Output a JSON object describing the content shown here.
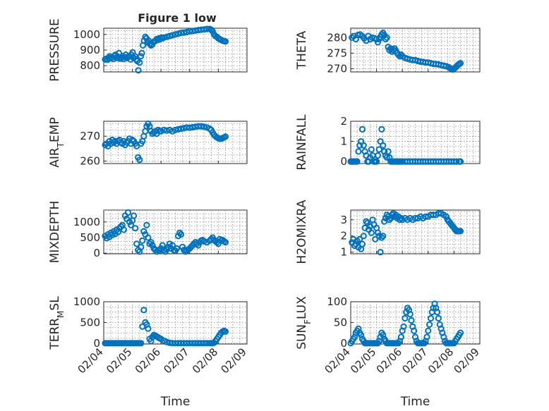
{
  "figure": {
    "title": "Figure 1 low"
  },
  "style": {
    "marker_color": "#0072BD",
    "marker": "open-circle",
    "grid": true
  },
  "chart_data": [
    {
      "type": "scatter",
      "title": "Figure 1 low",
      "xlabel": "",
      "ylabel": "PRESSURE",
      "xlim": [
        "02/04",
        "02/09"
      ],
      "xticks": [],
      "ylim": [
        760,
        1040
      ],
      "yticks": [
        800,
        900,
        1000
      ],
      "x": [
        4.05,
        4.09,
        4.13,
        4.17,
        4.21,
        4.25,
        4.29,
        4.33,
        4.37,
        4.41,
        4.45,
        4.49,
        4.53,
        4.57,
        4.61,
        4.65,
        4.69,
        4.73,
        4.77,
        4.81,
        4.85,
        4.89,
        4.93,
        4.97,
        5.01,
        5.05,
        5.09,
        5.13,
        5.17,
        5.21,
        5.25,
        5.29,
        5.33,
        5.37,
        5.41,
        5.45,
        5.49,
        5.53,
        5.57,
        5.61,
        5.65,
        5.69,
        5.73,
        5.77,
        5.81,
        5.85,
        5.89,
        5.93,
        5.97,
        6.01,
        6.05,
        6.1,
        6.2,
        6.3,
        6.4,
        6.5,
        6.6,
        6.7,
        6.8,
        6.9,
        7.0,
        7.1,
        7.2,
        7.3,
        7.4,
        7.5,
        7.6,
        7.7,
        7.75,
        7.8,
        7.85,
        7.9,
        7.95,
        8.0,
        8.05,
        8.1,
        8.15,
        8.2,
        8.25
      ],
      "y": [
        840,
        845,
        838,
        850,
        860,
        848,
        855,
        842,
        862,
        870,
        850,
        858,
        880,
        845,
        850,
        860,
        842,
        855,
        870,
        850,
        855,
        860,
        840,
        870,
        885,
        850,
        860,
        840,
        830,
        770,
        820,
        860,
        880,
        930,
        960,
        985,
        975,
        950,
        960,
        940,
        930,
        935,
        950,
        955,
        960,
        970,
        965,
        975,
        970,
        980,
        975,
        980,
        985,
        990,
        995,
        1000,
        1005,
        1010,
        1012,
        1015,
        1020,
        1022,
        1025,
        1028,
        1030,
        1032,
        1035,
        1035,
        1030,
        1020,
        1000,
        990,
        985,
        975,
        970,
        965,
        960,
        958,
        955
      ]
    },
    {
      "type": "scatter",
      "title": "",
      "xlabel": "",
      "ylabel": "THETA",
      "xlim": [
        "02/04",
        "02/09"
      ],
      "xticks": [],
      "ylim": [
        269,
        283
      ],
      "yticks": [
        270,
        275,
        280
      ],
      "x": [
        4.05,
        4.12,
        4.2,
        4.28,
        4.36,
        4.44,
        4.52,
        4.6,
        4.68,
        4.76,
        4.84,
        4.92,
        5.0,
        5.05,
        5.1,
        5.15,
        5.2,
        5.25,
        5.3,
        5.35,
        5.4,
        5.45,
        5.5,
        5.55,
        5.6,
        5.65,
        5.7,
        5.75,
        5.8,
        5.85,
        5.9,
        5.95,
        6.0,
        6.1,
        6.2,
        6.3,
        6.4,
        6.5,
        6.6,
        6.7,
        6.8,
        6.9,
        7.0,
        7.1,
        7.2,
        7.3,
        7.4,
        7.5,
        7.6,
        7.7,
        7.8,
        7.85,
        7.9,
        7.95,
        8.0,
        8.05,
        8.1,
        8.15,
        8.2,
        8.25
      ],
      "y": [
        280,
        280.5,
        279.5,
        280.8,
        281,
        280.5,
        279.8,
        279,
        280.5,
        279.5,
        280,
        279.8,
        279.5,
        278.5,
        279.5,
        280.2,
        281,
        281.5,
        280.8,
        279.5,
        280,
        277,
        276,
        276.5,
        275.5,
        276,
        276.5,
        275.8,
        275,
        274.5,
        274,
        274.5,
        274,
        273.5,
        273.2,
        273,
        272.8,
        272.8,
        272.5,
        272.3,
        272.2,
        272,
        272,
        271.8,
        271.6,
        271.5,
        271.4,
        271.2,
        271,
        270.8,
        270.5,
        270.2,
        270,
        269.8,
        270,
        270.3,
        270.8,
        271.2,
        271.5,
        271.8
      ]
    },
    {
      "type": "scatter",
      "title": "",
      "xlabel": "",
      "ylabel": "AIR_TEMP",
      "xlim": [
        "02/04",
        "02/09"
      ],
      "xticks": [],
      "ylim": [
        259,
        276
      ],
      "yticks": [
        260,
        270
      ],
      "x": [
        4.05,
        4.1,
        4.15,
        4.2,
        4.25,
        4.3,
        4.35,
        4.4,
        4.45,
        4.5,
        4.55,
        4.6,
        4.65,
        4.7,
        4.75,
        4.8,
        4.85,
        4.9,
        4.95,
        5.0,
        5.05,
        5.1,
        5.15,
        5.2,
        5.25,
        5.3,
        5.35,
        5.4,
        5.45,
        5.5,
        5.55,
        5.6,
        5.65,
        5.7,
        5.75,
        5.8,
        5.85,
        5.9,
        5.95,
        6.0,
        6.1,
        6.2,
        6.3,
        6.4,
        6.5,
        6.6,
        6.7,
        6.8,
        6.9,
        7.0,
        7.1,
        7.2,
        7.3,
        7.4,
        7.5,
        7.6,
        7.7,
        7.75,
        7.8,
        7.85,
        7.9,
        7.95,
        8.0,
        8.05,
        8.1,
        8.15,
        8.2,
        8.25
      ],
      "y": [
        266.5,
        267,
        266,
        268,
        267,
        268.5,
        267.5,
        268,
        267,
        268,
        268.5,
        267.5,
        267,
        268,
        266.5,
        267.5,
        268,
        269,
        267,
        268.5,
        268,
        267,
        266,
        261.5,
        260.5,
        267,
        268,
        270,
        272,
        274,
        275,
        274,
        272,
        271,
        271.5,
        272,
        271,
        272.5,
        272,
        272,
        272.5,
        272.3,
        272.5,
        272,
        272.5,
        272.8,
        273,
        273.2,
        273.5,
        273.4,
        273.6,
        273.8,
        274,
        274,
        273.8,
        273.5,
        273,
        272.5,
        271.5,
        270.5,
        270,
        269.5,
        269.2,
        269,
        269,
        269.2,
        269.5,
        269.8
      ]
    },
    {
      "type": "scatter",
      "title": "",
      "xlabel": "",
      "ylabel": "RAINFALL",
      "xlim": [
        "02/04",
        "02/09"
      ],
      "xticks": [],
      "ylim": [
        -0.1,
        2
      ],
      "yticks": [
        0,
        1,
        2
      ],
      "x": [
        4.0,
        4.05,
        4.1,
        4.15,
        4.2,
        4.25,
        4.3,
        4.35,
        4.4,
        4.45,
        4.5,
        4.55,
        4.6,
        4.65,
        4.7,
        4.75,
        4.8,
        4.85,
        4.9,
        4.95,
        5.0,
        5.05,
        5.1,
        5.15,
        5.2,
        5.25,
        5.3,
        5.35,
        5.4,
        5.45,
        5.5,
        5.55,
        5.6,
        5.65,
        5.7,
        5.75,
        5.8,
        5.85,
        5.9,
        5.95,
        6.0,
        6.1,
        6.2,
        6.3,
        6.4,
        6.5,
        6.6,
        6.7,
        6.8,
        6.9,
        7.0,
        7.1,
        7.2,
        7.3,
        7.4,
        7.5,
        7.6,
        7.7,
        7.8,
        7.9,
        8.0,
        8.1,
        8.2,
        8.25
      ],
      "y": [
        0,
        0,
        0,
        0,
        0,
        0,
        0.5,
        0.8,
        1.0,
        1.6,
        0.8,
        0.5,
        0.3,
        0,
        0,
        0.2,
        0.6,
        0.3,
        0,
        0,
        0,
        0.3,
        0.6,
        1.0,
        1.6,
        0.8,
        0.5,
        0.3,
        0.2,
        0.5,
        0.2,
        0,
        0,
        0,
        0,
        0,
        0,
        0,
        0,
        0,
        0,
        0,
        0,
        0,
        0,
        0,
        0,
        0,
        0,
        0,
        0,
        0,
        0,
        0,
        0,
        0,
        0,
        0,
        0,
        0,
        0,
        0,
        0,
        0
      ]
    },
    {
      "type": "scatter",
      "title": "",
      "xlabel": "",
      "ylabel": "MIXDEPTH",
      "xlim": [
        "02/04",
        "02/09"
      ],
      "xticks": [],
      "ylim": [
        -20,
        1380
      ],
      "yticks": [
        0,
        500,
        1000
      ],
      "x": [
        4.05,
        4.1,
        4.15,
        4.2,
        4.25,
        4.3,
        4.35,
        4.4,
        4.45,
        4.5,
        4.55,
        4.6,
        4.65,
        4.7,
        4.75,
        4.8,
        4.85,
        4.9,
        4.95,
        5.0,
        5.05,
        5.1,
        5.15,
        5.2,
        5.25,
        5.3,
        5.35,
        5.4,
        5.45,
        5.5,
        5.55,
        5.6,
        5.65,
        5.7,
        5.75,
        5.8,
        5.85,
        5.9,
        5.95,
        6.0,
        6.05,
        6.1,
        6.15,
        6.2,
        6.25,
        6.3,
        6.35,
        6.4,
        6.45,
        6.5,
        6.55,
        6.6,
        6.65,
        6.7,
        6.75,
        6.8,
        6.85,
        6.9,
        6.95,
        7.0,
        7.05,
        7.1,
        7.15,
        7.2,
        7.25,
        7.3,
        7.35,
        7.4,
        7.45,
        7.5,
        7.6,
        7.7,
        7.75,
        7.8,
        7.85,
        7.9,
        7.95,
        8.0,
        8.05,
        8.1,
        8.15,
        8.2,
        8.25
      ],
      "y": [
        550,
        480,
        600,
        520,
        650,
        580,
        700,
        620,
        750,
        680,
        800,
        850,
        900,
        750,
        1200,
        1100,
        1300,
        1000,
        900,
        1050,
        1200,
        800,
        300,
        100,
        50,
        200,
        400,
        700,
        600,
        900,
        500,
        300,
        350,
        250,
        150,
        100,
        50,
        100,
        80,
        150,
        250,
        100,
        50,
        120,
        200,
        300,
        150,
        250,
        100,
        80,
        150,
        550,
        650,
        600,
        200,
        100,
        50,
        80,
        120,
        150,
        200,
        250,
        300,
        350,
        300,
        250,
        350,
        400,
        420,
        380,
        350,
        400,
        450,
        500,
        420,
        380,
        350,
        300,
        450,
        400,
        420,
        380,
        350
      ]
    },
    {
      "type": "scatter",
      "title": "",
      "xlabel": "",
      "ylabel": "H2OMIXRA",
      "xlim": [
        "02/04",
        "02/09"
      ],
      "xticks": [],
      "ylim": [
        0.9,
        3.6
      ],
      "yticks": [
        1,
        2,
        3
      ],
      "x": [
        4.05,
        4.1,
        4.15,
        4.2,
        4.25,
        4.3,
        4.35,
        4.4,
        4.45,
        4.5,
        4.55,
        4.6,
        4.65,
        4.7,
        4.75,
        4.8,
        4.85,
        4.9,
        4.95,
        5.0,
        5.05,
        5.1,
        5.15,
        5.2,
        5.25,
        5.3,
        5.35,
        5.4,
        5.45,
        5.5,
        5.55,
        5.6,
        5.65,
        5.7,
        5.75,
        5.8,
        5.85,
        5.9,
        5.95,
        6.0,
        6.1,
        6.2,
        6.3,
        6.4,
        6.5,
        6.6,
        6.7,
        6.8,
        6.9,
        7.0,
        7.1,
        7.2,
        7.3,
        7.4,
        7.5,
        7.6,
        7.7,
        7.75,
        7.8,
        7.85,
        7.9,
        7.95,
        8.0,
        8.05,
        8.1,
        8.15,
        8.2,
        8.25
      ],
      "y": [
        1.6,
        1.8,
        1.4,
        1.5,
        1.7,
        1.3,
        1.8,
        1.2,
        1.5,
        2.0,
        2.5,
        2.9,
        2.8,
        2.4,
        2.6,
        2.2,
        3.0,
        2.7,
        1.8,
        2.5,
        2.2,
        2.0,
        1.0,
        1.9,
        2.0,
        2.9,
        3.1,
        3.3,
        3.2,
        3.0,
        3.1,
        3.3,
        3.4,
        3.2,
        3.3,
        3.1,
        3.2,
        3.0,
        3.1,
        3.0,
        3.1,
        3.0,
        3.1,
        3.0,
        3.1,
        3.1,
        3.2,
        3.1,
        3.2,
        3.2,
        3.3,
        3.3,
        3.3,
        3.4,
        3.4,
        3.3,
        3.2,
        3.0,
        2.9,
        2.8,
        2.7,
        2.6,
        2.5,
        2.4,
        2.3,
        2.3,
        2.3,
        2.3
      ]
    },
    {
      "type": "scatter",
      "title": "",
      "xlabel": "Time",
      "ylabel": "TERR_MSL",
      "xlim": [
        "02/04",
        "02/09"
      ],
      "xticks": [
        "02/04",
        "02/05",
        "02/06",
        "02/07",
        "02/08",
        "02/09"
      ],
      "ylim": [
        -20,
        1000
      ],
      "yticks": [
        0,
        500,
        1000
      ],
      "x": [
        4.05,
        4.1,
        4.15,
        4.2,
        4.25,
        4.3,
        4.35,
        4.4,
        4.45,
        4.5,
        4.55,
        4.6,
        4.65,
        4.7,
        4.75,
        4.8,
        4.85,
        4.9,
        4.95,
        5.0,
        5.05,
        5.1,
        5.15,
        5.2,
        5.25,
        5.3,
        5.35,
        5.4,
        5.45,
        5.5,
        5.55,
        5.6,
        5.65,
        5.7,
        5.75,
        5.8,
        5.85,
        5.9,
        5.95,
        6.0,
        6.1,
        6.2,
        6.3,
        6.4,
        6.5,
        6.6,
        6.7,
        6.8,
        6.9,
        7.0,
        7.1,
        7.2,
        7.3,
        7.4,
        7.5,
        7.6,
        7.7,
        7.75,
        7.8,
        7.85,
        7.9,
        7.95,
        8.0,
        8.05,
        8.1,
        8.15,
        8.2,
        8.25
      ],
      "y": [
        0,
        0,
        0,
        0,
        0,
        0,
        0,
        0,
        0,
        0,
        0,
        0,
        0,
        0,
        0,
        0,
        0,
        0,
        0,
        0,
        0,
        0,
        0,
        0,
        0,
        0,
        400,
        800,
        500,
        450,
        350,
        100,
        50,
        150,
        200,
        180,
        160,
        140,
        120,
        100,
        60,
        30,
        10,
        0,
        0,
        0,
        0,
        0,
        0,
        0,
        0,
        0,
        0,
        0,
        0,
        0,
        0,
        0,
        0,
        10,
        50,
        100,
        150,
        200,
        250,
        280,
        300,
        280
      ]
    },
    {
      "type": "scatter",
      "title": "",
      "xlabel": "Time",
      "ylabel": "SUN_FLUX",
      "xlim": [
        "02/04",
        "02/09"
      ],
      "xticks": [
        "02/04",
        "02/05",
        "02/06",
        "02/07",
        "02/08",
        "02/09"
      ],
      "ylim": [
        -2,
        100
      ],
      "yticks": [
        0,
        50,
        100
      ],
      "x": [
        4.0,
        4.05,
        4.1,
        4.15,
        4.2,
        4.25,
        4.3,
        4.35,
        4.4,
        4.45,
        4.5,
        4.55,
        4.6,
        4.65,
        4.7,
        4.75,
        4.8,
        4.85,
        4.9,
        4.95,
        5.0,
        5.05,
        5.1,
        5.15,
        5.2,
        5.25,
        5.3,
        5.35,
        5.4,
        5.45,
        5.5,
        5.55,
        5.6,
        5.65,
        5.7,
        5.75,
        5.8,
        5.85,
        5.9,
        5.95,
        6.0,
        6.05,
        6.1,
        6.15,
        6.2,
        6.25,
        6.3,
        6.35,
        6.4,
        6.45,
        6.5,
        6.55,
        6.6,
        6.65,
        6.7,
        6.75,
        6.8,
        6.85,
        6.9,
        6.95,
        7.0,
        7.05,
        7.1,
        7.15,
        7.2,
        7.25,
        7.3,
        7.35,
        7.4,
        7.45,
        7.5,
        7.55,
        7.6,
        7.65,
        7.7,
        7.75,
        7.8,
        7.85,
        7.9,
        7.95,
        8.0,
        8.05,
        8.1,
        8.15,
        8.2,
        8.25
      ],
      "y": [
        0,
        5,
        10,
        15,
        25,
        30,
        35,
        25,
        20,
        10,
        5,
        0,
        0,
        0,
        0,
        0,
        0,
        0,
        0,
        0,
        0,
        0,
        5,
        15,
        25,
        20,
        10,
        5,
        0,
        0,
        0,
        0,
        0,
        0,
        0,
        0,
        0,
        0,
        5,
        15,
        30,
        40,
        60,
        75,
        85,
        80,
        70,
        55,
        40,
        30,
        15,
        5,
        0,
        0,
        0,
        0,
        0,
        0,
        5,
        15,
        30,
        45,
        60,
        75,
        85,
        95,
        85,
        75,
        60,
        45,
        35,
        25,
        15,
        5,
        0,
        0,
        0,
        0,
        0,
        0,
        0,
        5,
        10,
        15,
        20,
        25
      ]
    }
  ]
}
